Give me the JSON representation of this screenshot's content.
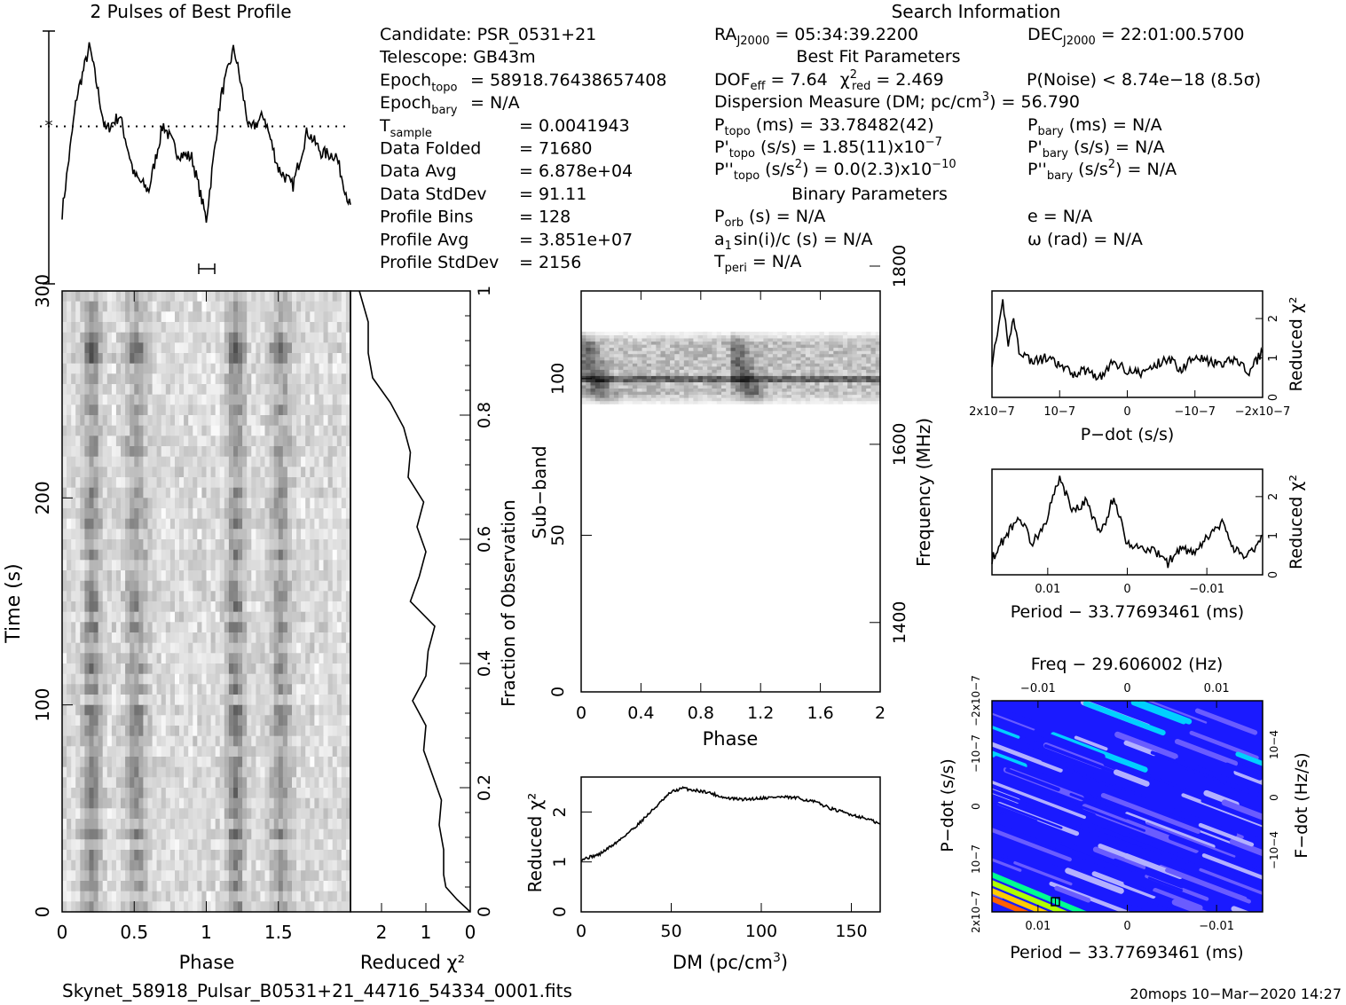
{
  "header": {
    "profile_title": "2 Pulses of Best Profile",
    "search_title": "Search Information",
    "best_fit_title": "Best Fit Parameters",
    "binary_title": "Binary Parameters"
  },
  "candidate_info": [
    {
      "label": "Candidate:  PSR_0531+21",
      "value": ""
    },
    {
      "label": "Telescope:  GB43m",
      "value": ""
    },
    {
      "label": "Epoch",
      "sub": "topo",
      "value": "= 58918.76438657408"
    },
    {
      "label": "Epoch",
      "sub": "bary",
      "value": "= N/A"
    },
    {
      "label": "T",
      "sub": "sample",
      "value": "=   0.0041943"
    },
    {
      "label": "Data Folded",
      "value": "=   71680"
    },
    {
      "label": "Data Avg",
      "value": "=   6.878e+04"
    },
    {
      "label": "Data StdDev",
      "value": "=   91.11"
    },
    {
      "label": "Profile Bins",
      "value": "=   128"
    },
    {
      "label": "Profile Avg",
      "value": "=   3.851e+07"
    },
    {
      "label": "Profile StdDev",
      "value": "=   2156"
    }
  ],
  "search_info": {
    "ra": "RA",
    "ra_sub": "J2000",
    "ra_value": "= 05:34:39.2200",
    "dec": "DEC",
    "dec_sub": "J2000",
    "dec_value": "= 22:01:00.5700",
    "dof_line": "DOF",
    "dof_sub": "eff",
    "dof_value": "= 7.64",
    "chi2": "χ",
    "chi2_sup": "2",
    "chi2_sub": "red",
    "chi2_value": "= 2.469",
    "pnoise": "P(Noise) < 8.74e−18  (8.5σ)",
    "dm_line": "Dispersion Measure (DM; pc/cm",
    "dm_sup": "3",
    "dm_value": ") = 56.790",
    "ptopo": "P",
    "ptopo_sub": "topo",
    "ptopo_value": "(ms) =  33.78482(42)",
    "pdtopo": "P'",
    "pdtopo_sub": "topo",
    "pdtopo_value": "(s/s) =  1.85(11)x10",
    "pdtopo_exp": "−7",
    "pddtopo": "P''",
    "pddtopo_sub": "topo",
    "pddtopo_value": "(s/s",
    "pddtopo_sup": "2",
    "pddtopo_value2": ") = 0.0(2.3)x10",
    "pddtopo_exp": "−10",
    "pbary": "P",
    "pbary_sub": "bary",
    "pbary_value": "(ms) = N/A",
    "pdbary": "P'",
    "pdbary_sub": "bary",
    "pdbary_value": "(s/s) = N/A",
    "pddbary": "P''",
    "pddbary_sub": "bary",
    "pddbary_value": "(s/s",
    "pddbary_sup": "2",
    "pddbary_value2": ") = N/A",
    "porb": "P",
    "porb_sub": "orb",
    "porb_value": "(s) = N/A",
    "asini": "a",
    "asini_sub": "1",
    "asini_value": "sin(i)/c (s) = N/A",
    "tperi": "T",
    "tperi_sub": "peri",
    "tperi_value": "= N/A",
    "ecc": "e = N/A",
    "omega": "ω (rad) = N/A"
  },
  "footer": {
    "filename": "Skynet_58918_Pulsar_B0531+21_44716_54334_0001.fits",
    "timestamp": "20mops 10−Mar−2020 14:27"
  },
  "colors": {
    "ink": "#000000",
    "greyscale_max": "#000000",
    "greyscale_min": "#ffffff"
  },
  "chart_data": [
    {
      "id": "profile",
      "type": "line",
      "title": "2 Pulses of Best Profile",
      "xlabel": "",
      "x": [
        0.0,
        0.1,
        0.19,
        0.2,
        0.3,
        0.4,
        0.5,
        0.6,
        0.7,
        0.8,
        0.9,
        1.0,
        1.1,
        1.19,
        1.2,
        1.3,
        1.4,
        1.5,
        1.6,
        1.7,
        1.8,
        1.9,
        2.0
      ],
      "values": [
        0.18,
        0.7,
        0.93,
        0.9,
        0.55,
        0.62,
        0.35,
        0.28,
        0.58,
        0.45,
        0.43,
        0.15,
        0.7,
        0.92,
        0.9,
        0.55,
        0.62,
        0.38,
        0.3,
        0.55,
        0.45,
        0.44,
        0.2
      ],
      "mean_line": 0.57
    },
    {
      "id": "time-phase",
      "type": "heatmap",
      "xlabel": "Phase",
      "ylabel": "Time (s)",
      "xlim": [
        0,
        2
      ],
      "ylim": [
        0,
        300
      ],
      "x_ticks": [
        "0",
        "0.5",
        "1",
        "1.5"
      ],
      "y_ticks": [
        "0",
        "100",
        "200",
        "300"
      ]
    },
    {
      "id": "time-chi2",
      "type": "line",
      "xlabel": "Reduced χ2",
      "ylabel": "Fraction of Observation",
      "xlim": [
        2.5,
        0
      ],
      "ylim": [
        0,
        1
      ],
      "x_ticks": [
        "2",
        "1",
        "0"
      ],
      "y_ticks": [
        "0",
        "0.2",
        "0.4",
        "0.6",
        "0.8",
        "1"
      ],
      "x": [
        0.0,
        0.3,
        0.55,
        0.6,
        0.6,
        0.7,
        0.65,
        0.85,
        1.05,
        1.0,
        1.3,
        1.0,
        0.95,
        0.8,
        1.35,
        1.15,
        1.0,
        1.2,
        1.05,
        1.4,
        1.35,
        1.5,
        1.8,
        2.2,
        2.3,
        2.3,
        2.5
      ],
      "y": [
        0.0,
        0.02,
        0.04,
        0.06,
        0.1,
        0.14,
        0.18,
        0.22,
        0.26,
        0.3,
        0.34,
        0.38,
        0.42,
        0.46,
        0.5,
        0.54,
        0.58,
        0.62,
        0.66,
        0.7,
        0.74,
        0.78,
        0.82,
        0.86,
        0.9,
        0.95,
        1.0
      ]
    },
    {
      "id": "subband-phase",
      "type": "heatmap",
      "xlabel": "Phase",
      "ylabel": "Sub−band",
      "y2label": "Frequency (MHz)",
      "xlim": [
        0,
        2
      ],
      "ylim": [
        0,
        128
      ],
      "x_ticks": [
        "0",
        "0.4",
        "0.8",
        "1.2",
        "1.6",
        "2"
      ],
      "y_ticks": [
        "0",
        "50",
        "100"
      ],
      "y2_ticks": [
        "1400",
        "1600",
        "1800"
      ],
      "active_band": [
        91,
        115
      ]
    },
    {
      "id": "dm-chi2",
      "type": "line",
      "xlabel": "DM (pc/cm3)",
      "ylabel": "Reduced χ2",
      "xlim": [
        0,
        166
      ],
      "ylim": [
        0,
        2.7
      ],
      "x_ticks": [
        "0",
        "50",
        "100",
        "150"
      ],
      "y_ticks": [
        "0",
        "1",
        "2"
      ],
      "x": [
        0,
        10,
        20,
        30,
        40,
        50,
        56.79,
        60,
        70,
        80,
        90,
        100,
        110,
        120,
        130,
        140,
        150,
        160,
        166
      ],
      "values": [
        1.05,
        1.15,
        1.4,
        1.7,
        2.05,
        2.4,
        2.48,
        2.45,
        2.4,
        2.28,
        2.25,
        2.28,
        2.3,
        2.28,
        2.2,
        2.05,
        1.95,
        1.85,
        1.75
      ]
    },
    {
      "id": "pdot-chi2",
      "type": "line",
      "xlabel": "P−dot (s/s)",
      "ylabel": "Reduced χ2",
      "ylim": [
        0,
        2.7
      ],
      "x_ticks": [
        "2x10−7",
        "10−7",
        "0",
        "−10−7",
        "−2x10−7"
      ],
      "y_ticks": [
        "0",
        "1",
        "2"
      ],
      "x": [
        0,
        0.02,
        0.04,
        0.06,
        0.08,
        0.1,
        0.15,
        0.2,
        0.25,
        0.3,
        0.35,
        0.4,
        0.45,
        0.5,
        0.55,
        0.6,
        0.65,
        0.7,
        0.75,
        0.8,
        0.85,
        0.9,
        0.95,
        1.0
      ],
      "values": [
        0.9,
        1.5,
        2.4,
        1.4,
        2.0,
        1.2,
        0.9,
        1.0,
        0.8,
        0.6,
        0.7,
        0.5,
        0.9,
        0.7,
        0.6,
        0.8,
        1.0,
        0.7,
        1.1,
        0.9,
        0.8,
        1.0,
        0.6,
        1.2
      ]
    },
    {
      "id": "period-chi2",
      "type": "line",
      "xlabel": "Period − 33.77693461 (ms)",
      "ylabel": "Reduced χ2",
      "ylim": [
        0,
        2.7
      ],
      "x_ticks": [
        "0.01",
        "0",
        "−0.01"
      ],
      "y_ticks": [
        "0",
        "1",
        "2"
      ],
      "x": [
        0,
        0.05,
        0.1,
        0.15,
        0.2,
        0.25,
        0.3,
        0.35,
        0.4,
        0.45,
        0.5,
        0.55,
        0.6,
        0.65,
        0.7,
        0.75,
        0.8,
        0.85,
        0.9,
        0.95,
        1.0
      ],
      "values": [
        0.4,
        1.0,
        1.5,
        0.8,
        1.4,
        2.5,
        1.6,
        1.9,
        1.0,
        2.0,
        0.8,
        0.7,
        0.6,
        0.3,
        0.7,
        0.5,
        1.0,
        1.3,
        0.6,
        0.5,
        1.0
      ]
    },
    {
      "id": "ppdot-plane",
      "type": "heatmap",
      "title": "Freq − 29.606002 (Hz)",
      "xlabel": "Period − 33.77693461 (ms)",
      "ylabel": "P−dot (s/s)",
      "y2label": "F−dot (Hz/s)",
      "x_ticks": [
        "0.01",
        "0",
        "−0.01"
      ],
      "top_ticks": [
        "−0.01",
        "0",
        "0.01"
      ],
      "y_ticks": [
        "2x10−7",
        "10−7",
        "0",
        "−10−7",
        "−2x10−7"
      ],
      "y2_ticks": [
        "−10−4",
        "0",
        "10−4"
      ],
      "palette": [
        "#1a1aff",
        "#6a5cff",
        "#b3b0ff",
        "#00d0ff",
        "#00ff90",
        "#b0ff00",
        "#ffcc00",
        "#ff6000"
      ]
    }
  ]
}
